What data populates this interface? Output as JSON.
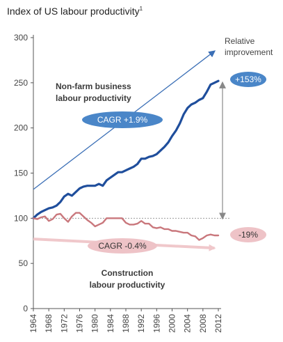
{
  "title": "Index of US labour productivity",
  "title_footnote": "1",
  "colors": {
    "nonfarm": "#1f4e9c",
    "construction": "#c9777c",
    "trend_blue": "#3b6fb6",
    "oval_blue": "#4a86c8",
    "oval_pink": "#eec3c7",
    "baseline": "#999999",
    "gap_arrow": "#888888"
  },
  "annotations": {
    "nonfarm_label_line1": "Non-farm business",
    "nonfarm_label_line2": "labour productivity",
    "nonfarm_cagr": "CAGR +1.9%",
    "construction_label_line1": "Construction",
    "construction_label_line2": "labour productivity",
    "construction_cagr": "CAGR -0.4%",
    "relative_line1": "Relative",
    "relative_line2": "improvement",
    "nonfarm_change": "+153%",
    "construction_change": "-19%"
  },
  "chart_data": {
    "type": "line",
    "title": "Index of US labour productivity",
    "xlabel": "",
    "ylabel": "",
    "xlim": [
      1964,
      2012
    ],
    "ylim": [
      0,
      300
    ],
    "yticks": [
      0,
      50,
      100,
      150,
      200,
      250,
      300
    ],
    "xticks": [
      1964,
      1968,
      1972,
      1976,
      1980,
      1984,
      1988,
      1992,
      1996,
      2000,
      2004,
      2008,
      2012
    ],
    "grid": false,
    "series": [
      {
        "name": "Non-farm business labour productivity",
        "x": [
          1964,
          1965,
          1966,
          1967,
          1968,
          1969,
          1970,
          1971,
          1972,
          1973,
          1974,
          1975,
          1976,
          1977,
          1978,
          1979,
          1980,
          1981,
          1982,
          1983,
          1984,
          1985,
          1986,
          1987,
          1988,
          1989,
          1990,
          1991,
          1992,
          1993,
          1994,
          1995,
          1996,
          1997,
          1998,
          1999,
          2000,
          2001,
          2002,
          2003,
          2004,
          2005,
          2006,
          2007,
          2008,
          2009,
          2010,
          2011,
          2012
        ],
        "values": [
          100,
          104,
          107,
          109,
          111,
          112,
          114,
          118,
          124,
          127,
          125,
          129,
          133,
          135,
          136,
          136,
          136,
          138,
          136,
          142,
          145,
          148,
          151,
          151,
          153,
          155,
          157,
          160,
          166,
          166,
          168,
          169,
          171,
          175,
          179,
          184,
          191,
          197,
          205,
          215,
          222,
          226,
          228,
          231,
          233,
          240,
          248,
          250,
          252
        ]
      },
      {
        "name": "Construction labour productivity",
        "x": [
          1964,
          1965,
          1966,
          1967,
          1968,
          1969,
          1970,
          1971,
          1972,
          1973,
          1974,
          1975,
          1976,
          1977,
          1978,
          1979,
          1980,
          1981,
          1982,
          1983,
          1984,
          1985,
          1986,
          1987,
          1988,
          1989,
          1990,
          1991,
          1992,
          1993,
          1994,
          1995,
          1996,
          1997,
          1998,
          1999,
          2000,
          2001,
          2002,
          2003,
          2004,
          2005,
          2006,
          2007,
          2008,
          2009,
          2010,
          2011,
          2012
        ],
        "values": [
          100,
          99,
          101,
          102,
          97,
          99,
          104,
          105,
          100,
          96,
          102,
          106,
          106,
          102,
          98,
          95,
          91,
          93,
          95,
          100,
          100,
          100,
          100,
          100,
          95,
          93,
          93,
          94,
          97,
          94,
          94,
          90,
          89,
          90,
          88,
          88,
          86,
          86,
          85,
          84,
          84,
          81,
          80,
          76,
          78,
          81,
          82,
          81,
          81
        ]
      }
    ],
    "trend_lines": [
      {
        "name": "Non-farm trend",
        "x": [
          1964,
          2011
        ],
        "values": [
          132,
          285
        ]
      },
      {
        "name": "Construction trend",
        "x": [
          1964,
          2011
        ],
        "values": [
          77,
          67
        ]
      }
    ],
    "baseline": 100,
    "relative_improvement": [
      "+153%",
      "-19%"
    ],
    "cagr": [
      "CAGR +1.9%",
      "CAGR -0.4%"
    ]
  }
}
